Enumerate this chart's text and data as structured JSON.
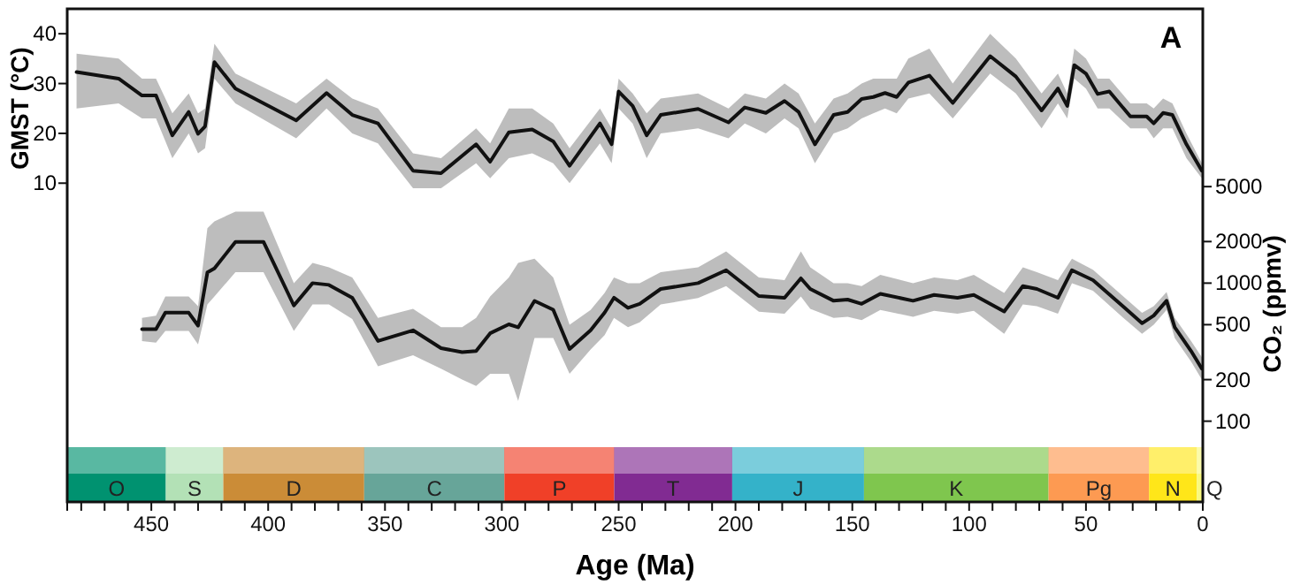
{
  "chart_data": {
    "type": "line",
    "xlabel": "Age (Ma)",
    "ylabel": "GMST (°C)",
    "y2label": "CO₂ (ppmv)",
    "annotations": [
      "A"
    ],
    "xlim": [
      486,
      0
    ],
    "ylim": [
      -54,
      45
    ],
    "y2lim": [
      26,
      97000
    ],
    "log": "y2",
    "xticks": [
      {
        "value": 480,
        "label": null
      },
      {
        "value": 470,
        "label": null
      },
      {
        "value": 460,
        "label": null
      },
      450,
      {
        "value": 440,
        "label": null
      },
      {
        "value": 430,
        "label": null
      },
      {
        "value": 420,
        "label": null
      },
      {
        "value": 410,
        "label": null
      },
      400,
      {
        "value": 390,
        "label": null
      },
      {
        "value": 380,
        "label": null
      },
      {
        "value": 370,
        "label": null
      },
      {
        "value": 360,
        "label": null
      },
      350,
      {
        "value": 340,
        "label": null
      },
      {
        "value": 330,
        "label": null
      },
      {
        "value": 320,
        "label": null
      },
      {
        "value": 310,
        "label": null
      },
      300,
      {
        "value": 290,
        "label": null
      },
      {
        "value": 280,
        "label": null
      },
      {
        "value": 270,
        "label": null
      },
      {
        "value": 260,
        "label": null
      },
      250,
      {
        "value": 240,
        "label": null
      },
      {
        "value": 230,
        "label": null
      },
      {
        "value": 220,
        "label": null
      },
      {
        "value": 210,
        "label": null
      },
      200,
      {
        "value": 190,
        "label": null
      },
      {
        "value": 180,
        "label": null
      },
      {
        "value": 170,
        "label": null
      },
      {
        "value": 160,
        "label": null
      },
      150,
      {
        "value": 140,
        "label": null
      },
      {
        "value": 130,
        "label": null
      },
      {
        "value": 120,
        "label": null
      },
      {
        "value": 110,
        "label": null
      },
      100,
      {
        "value": 90,
        "label": null
      },
      {
        "value": 80,
        "label": null
      },
      {
        "value": 70,
        "label": null
      },
      {
        "value": 60,
        "label": null
      },
      50,
      {
        "value": 40,
        "label": null
      },
      {
        "value": 30,
        "label": null
      },
      {
        "value": 20,
        "label": null
      },
      {
        "value": 10,
        "label": null
      },
      0
    ],
    "yticks": [
      10,
      20,
      30,
      40
    ],
    "y2ticks": [
      100,
      200,
      500,
      1000,
      2000,
      5000
    ],
    "series": [
      {
        "color": "#111111",
        "x": [
          482,
          464,
          454,
          448,
          441,
          434,
          430,
          427,
          423,
          414,
          388,
          375,
          364,
          353,
          338,
          326,
          311,
          305,
          297,
          287,
          278,
          271,
          258,
          253,
          250,
          244,
          238,
          232,
          216,
          203,
          196,
          187,
          179,
          173,
          166,
          158,
          152,
          146,
          141,
          136,
          131,
          126,
          117,
          107,
          91,
          80,
          69,
          62,
          58,
          55,
          50,
          45,
          40,
          31,
          24,
          21,
          17,
          13,
          7,
          0.4
        ],
        "values": [
          32.3,
          31.0,
          27.6,
          27.6,
          19.6,
          24.3,
          19.9,
          21.4,
          34.3,
          29.0,
          22.6,
          28.1,
          23.7,
          22.0,
          12.5,
          12.0,
          17.8,
          14.3,
          20.2,
          20.8,
          18.4,
          13.5,
          22.0,
          17.8,
          28.4,
          25.5,
          19.6,
          23.7,
          24.9,
          22.2,
          25.2,
          24.1,
          26.5,
          24.3,
          17.8,
          23.7,
          24.3,
          26.9,
          27.3,
          28.1,
          27.3,
          30.2,
          31.6,
          26.1,
          35.5,
          31.4,
          24.6,
          29.0,
          25.5,
          33.7,
          32.0,
          27.9,
          28.4,
          23.4,
          23.4,
          22.0,
          24.1,
          23.7,
          17.8,
          12.5
        ],
        "lower": [
          25,
          26,
          23,
          23,
          15,
          20,
          16,
          17,
          31,
          26,
          19,
          25,
          20,
          18,
          9,
          9,
          14,
          11,
          15,
          16,
          14,
          10,
          18,
          14,
          25,
          22,
          15,
          20,
          21,
          19,
          22,
          20,
          23,
          21,
          14,
          20,
          21,
          23,
          24,
          25,
          24,
          27,
          28,
          23,
          32,
          28,
          21,
          26,
          23,
          31,
          29,
          25,
          25,
          21,
          21,
          19,
          21,
          21,
          15,
          11
        ],
        "upper": [
          36,
          35,
          31,
          31,
          24,
          28,
          24,
          25,
          38,
          32,
          26,
          31,
          27,
          25,
          16,
          15,
          21,
          18,
          25,
          25,
          22,
          17,
          25,
          21,
          31,
          28,
          24,
          27,
          28,
          25,
          28,
          27,
          30,
          28,
          22,
          27,
          28,
          30,
          31,
          31,
          31,
          35,
          37,
          30,
          40,
          35,
          28,
          32,
          28,
          37,
          35,
          31,
          31,
          26,
          26,
          25,
          27,
          26,
          20,
          14
        ]
      },
      {
        "color": "#111111",
        "axis": "y2",
        "x": [
          454,
          448,
          444,
          434,
          430,
          426,
          423,
          414,
          402,
          389,
          381,
          374,
          364,
          353,
          338,
          326,
          317,
          311,
          305,
          297,
          293,
          286,
          278,
          271,
          262,
          256,
          252,
          246,
          241,
          232,
          216,
          204,
          190,
          179,
          172,
          168,
          158,
          152,
          146,
          138,
          124,
          115,
          105,
          98,
          85,
          77,
          71,
          62,
          56,
          47,
          34,
          26,
          21,
          15.5,
          12,
          5,
          0.4
        ],
        "values": [
          464,
          464,
          611,
          611,
          492,
          1194,
          1278,
          1990,
          1990,
          688,
          1000,
          971,
          783,
          381,
          455,
          338,
          316,
          322,
          433,
          503,
          478,
          744,
          642,
          333,
          455,
          611,
          783,
          662,
          708,
          907,
          1000,
          1241,
          806,
          783,
          1083,
          907,
          745,
          760,
          708,
          837,
          745,
          821,
          783,
          821,
          623,
          951,
          907,
          783,
          1241,
          1051,
          675,
          512,
          582,
          745,
          478,
          322,
          240
        ],
        "lower": [
          380,
          370,
          450,
          450,
          360,
          700,
          800,
          1200,
          1200,
          450,
          700,
          700,
          550,
          250,
          300,
          240,
          200,
          180,
          220,
          220,
          140,
          400,
          400,
          220,
          330,
          420,
          560,
          480,
          520,
          700,
          780,
          950,
          620,
          600,
          800,
          650,
          560,
          570,
          540,
          640,
          570,
          630,
          600,
          630,
          430,
          700,
          680,
          600,
          1000,
          880,
          560,
          430,
          500,
          640,
          400,
          270,
          200
        ],
        "upper": [
          560,
          580,
          800,
          800,
          680,
          2500,
          2800,
          3300,
          3300,
          1000,
          1400,
          1300,
          1100,
          560,
          650,
          480,
          480,
          560,
          800,
          1100,
          1400,
          1500,
          1100,
          500,
          640,
          850,
          1100,
          1000,
          1000,
          1200,
          1300,
          1700,
          1100,
          1050,
          1700,
          1300,
          1000,
          1000,
          950,
          1150,
          1000,
          1100,
          1050,
          1150,
          850,
          1300,
          1200,
          1050,
          1500,
          1250,
          800,
          610,
          680,
          860,
          560,
          380,
          290
        ]
      }
    ],
    "bands": [
      {
        "axis": "x",
        "from": 486,
        "to": 443.8,
        "label": "O",
        "color": "#009270"
      },
      {
        "axis": "x",
        "from": 443.8,
        "to": 419.2,
        "label": "S",
        "color": "#b3e1b6"
      },
      {
        "axis": "x",
        "from": 419.2,
        "to": 358.9,
        "label": "D",
        "color": "#cb8c37"
      },
      {
        "axis": "x",
        "from": 358.9,
        "to": 298.9,
        "label": "C",
        "color": "#67a599"
      },
      {
        "axis": "x",
        "from": 298.9,
        "to": 251.9,
        "label": "P",
        "color": "#f04028"
      },
      {
        "axis": "x",
        "from": 251.9,
        "to": 201.4,
        "label": "T",
        "color": "#812b92"
      },
      {
        "axis": "x",
        "from": 201.4,
        "to": 145,
        "label": "J",
        "color": "#34b2c9"
      },
      {
        "axis": "x",
        "from": 145,
        "to": 66,
        "label": "K",
        "color": "#7fc64e"
      },
      {
        "axis": "x",
        "from": 66,
        "to": 23,
        "label": "Pg",
        "color": "#fd9a52"
      },
      {
        "axis": "x",
        "from": 23,
        "to": 2.6,
        "label": "N",
        "color": "#ffe619"
      },
      {
        "axis": "x",
        "from": 2.6,
        "to": 0,
        "label": "Q",
        "color": "#f9f97f"
      }
    ]
  }
}
